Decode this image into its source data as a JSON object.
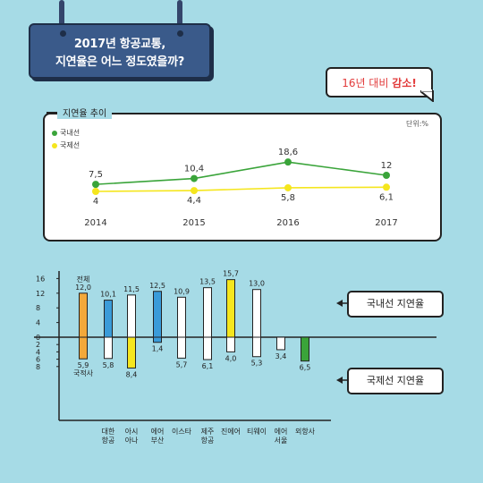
{
  "title": {
    "line1": "2017년 항공교통,",
    "line2": "지연율은 어느 정도였을까?"
  },
  "bubble": {
    "prefix": "16년 대비 ",
    "emphasis": "감소!"
  },
  "colors": {
    "background": "#a6dbe6",
    "domestic": "#3aa43a",
    "international": "#f5e61e",
    "orange": "#f3a93a",
    "blue": "#3a9bd9",
    "green": "#3aa43a",
    "yellow": "#f5e61e"
  },
  "chart_data": [
    {
      "type": "line",
      "title": "지연율 추이",
      "unit": "단위:%",
      "categories": [
        "2014",
        "2015",
        "2016",
        "2017"
      ],
      "series": [
        {
          "name": "국내선",
          "values": [
            7.5,
            10.4,
            18.6,
            12
          ]
        },
        {
          "name": "국제선",
          "values": [
            4,
            4.4,
            5.8,
            6.1
          ]
        }
      ],
      "value_labels": {
        "국내선": [
          "7,5",
          "10,4",
          "18,6",
          "12"
        ],
        "국제선": [
          "4",
          "4,4",
          "5,8",
          "6,1"
        ]
      },
      "legend_position": "top-left"
    },
    {
      "type": "bar",
      "yticks_up": [
        "16",
        "12",
        "8",
        "4",
        "0"
      ],
      "yticks_down": [
        "2",
        "4",
        "6",
        "8"
      ],
      "categories": [
        "전체/국적사",
        "대한항공",
        "아시아나",
        "에어부산",
        "이스타",
        "제주항공",
        "진에어",
        "티웨이",
        "에어서울",
        "외항사"
      ],
      "category_labels": [
        [
          "",
          ""
        ],
        [
          "대한",
          "항공"
        ],
        [
          "아시",
          "아나"
        ],
        [
          "에어",
          "부산"
        ],
        [
          "이스타",
          ""
        ],
        [
          "제주",
          "항공"
        ],
        [
          "진에어",
          ""
        ],
        [
          "티웨이",
          ""
        ],
        [
          "에어",
          "서울"
        ],
        [
          "외항사",
          ""
        ]
      ],
      "domestic": [
        12.0,
        10.1,
        11.5,
        12.5,
        10.9,
        13.5,
        15.7,
        13.0,
        null,
        null
      ],
      "international": [
        5.9,
        5.8,
        8.4,
        1.4,
        5.7,
        6.1,
        4.0,
        5.3,
        3.4,
        6.5
      ],
      "domestic_labels": [
        "12,0",
        "10,1",
        "11,5",
        "12,5",
        "10,9",
        "13,5",
        "15,7",
        "13,0",
        "",
        ""
      ],
      "international_labels": [
        "5,9",
        "5,8",
        "8,4",
        "1,4",
        "5,7",
        "6,1",
        "4,0",
        "5,3",
        "3,4",
        "6,5"
      ],
      "first_top_label": "전체",
      "first_bottom_label": "국적사",
      "highlight_colors": [
        "orange",
        "blue",
        "yellow",
        "blue",
        null,
        null,
        "yellow",
        null,
        null,
        "green"
      ],
      "callout_up": "국내선 지연율",
      "callout_down": "국제선 지연율"
    }
  ]
}
